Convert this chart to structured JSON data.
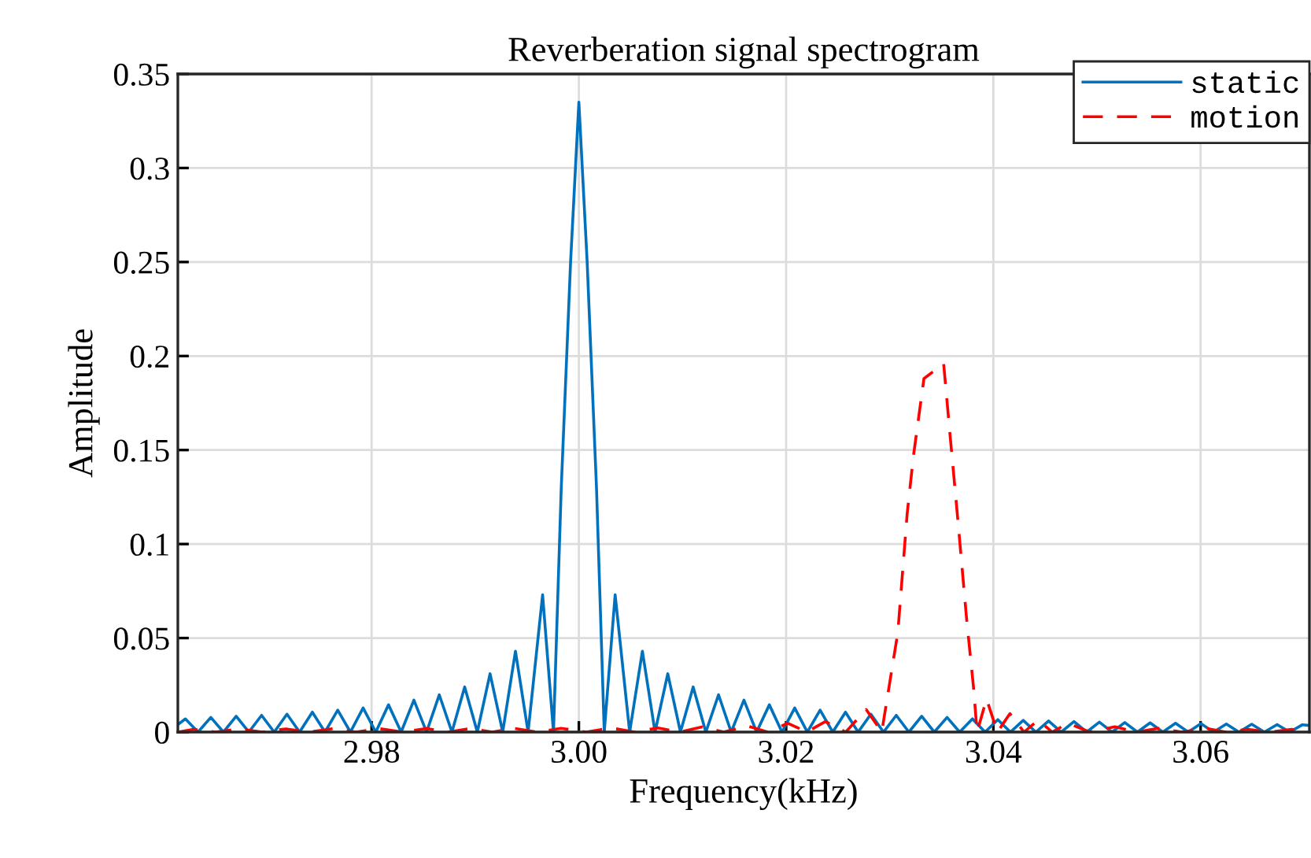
{
  "chart_data": {
    "type": "line",
    "title": "Reverberation signal spectrogram",
    "xlabel": "Frequency(kHz)",
    "ylabel": "Amplitude",
    "xlim": [
      2.9613,
      3.0705
    ],
    "ylim": [
      0,
      0.35
    ],
    "xticks": [
      2.98,
      {
        "value": 3.0,
        "label": "3.00"
      },
      3.02,
      3.04,
      3.06
    ],
    "yticks": [
      0,
      0.05,
      0.1,
      0.15,
      0.2,
      0.25,
      0.3,
      0.35
    ],
    "grid": true,
    "legend": "top right",
    "marker": "none",
    "series": [
      {
        "name": "static",
        "color": "#0072bd",
        "line_style": "solid",
        "x": [
          2.9613,
          2.96203,
          2.96325,
          2.96448,
          2.9657,
          2.96693,
          2.96815,
          2.96938,
          2.9706,
          2.97183,
          2.97305,
          2.97428,
          2.9755,
          2.97673,
          2.97795,
          2.97918,
          2.9804,
          2.98163,
          2.98285,
          2.98408,
          2.9853,
          2.98653,
          2.98775,
          2.98898,
          2.9902,
          2.99143,
          2.99265,
          2.99388,
          2.9951,
          2.9965,
          2.99755,
          2.9983,
          2.9992,
          3.0,
          3.0008,
          3.0017,
          3.00245,
          3.0035,
          3.0049,
          3.00613,
          3.00735,
          3.00858,
          3.0098,
          3.01103,
          3.01225,
          3.01348,
          3.0147,
          3.01593,
          3.01715,
          3.01838,
          3.0196,
          3.02083,
          3.02205,
          3.02328,
          3.0245,
          3.02573,
          3.02695,
          3.02818,
          3.0294,
          3.03063,
          3.03185,
          3.03308,
          3.0343,
          3.03553,
          3.03675,
          3.03798,
          3.0392,
          3.04043,
          3.04165,
          3.04288,
          3.0441,
          3.04533,
          3.04655,
          3.04778,
          3.049,
          3.05023,
          3.05145,
          3.05268,
          3.0539,
          3.05513,
          3.05635,
          3.05758,
          3.0588,
          3.06003,
          3.06125,
          3.06248,
          3.0637,
          3.06493,
          3.06615,
          3.06738,
          3.0686,
          3.06983,
          3.0705
        ],
        "values": [
          0.004,
          0.007,
          0,
          0.0078,
          0,
          0.0084,
          0,
          0.0089,
          0,
          0.0095,
          0,
          0.0106,
          0,
          0.0117,
          0,
          0.0128,
          0,
          0.0145,
          0,
          0.017,
          0,
          0.0198,
          0,
          0.024,
          0,
          0.031,
          0,
          0.043,
          0,
          0.073,
          0,
          0.13,
          0.25,
          0.335,
          0.25,
          0.13,
          0,
          0.073,
          0,
          0.043,
          0,
          0.031,
          0,
          0.024,
          0,
          0.0198,
          0,
          0.017,
          0,
          0.0145,
          0,
          0.0128,
          0,
          0.0117,
          0,
          0.0106,
          0,
          0.0095,
          0,
          0.0089,
          0,
          0.0084,
          0,
          0.0078,
          0,
          0.007,
          0,
          0.0066,
          0,
          0.0062,
          0,
          0.0059,
          0,
          0.0056,
          0,
          0.0053,
          0,
          0.0051,
          0,
          0.0049,
          0,
          0.0047,
          0,
          0.0045,
          0,
          0.0043,
          0,
          0.0042,
          0,
          0.004,
          0,
          0.0039,
          0.0035
        ]
      },
      {
        "name": "motion",
        "color": "#ff0000",
        "line_style": "dashed",
        "x": [
          2.9613,
          2.96281,
          2.96492,
          2.96719,
          2.96945,
          2.97172,
          2.97398,
          2.97624,
          2.97851,
          2.98077,
          2.98304,
          2.9853,
          2.98741,
          2.98953,
          2.99164,
          2.99375,
          2.99602,
          2.99828,
          3.0007,
          3.00311,
          3.00538,
          3.00764,
          3.00975,
          3.01187,
          3.01398,
          3.01624,
          3.01821,
          3.02017,
          3.02198,
          3.02379,
          3.02575,
          3.02772,
          3.02923,
          3.03078,
          3.03168,
          3.03229,
          3.0333,
          3.0352,
          3.03582,
          3.03657,
          3.03742,
          3.03808,
          3.03843,
          3.03934,
          3.04039,
          3.0416,
          3.04296,
          3.04432,
          3.04568,
          3.04719,
          3.0493,
          3.05172,
          3.05381,
          3.05592,
          3.0582,
          3.06047,
          3.06243,
          3.06455,
          3.06666,
          3.06877,
          3.06985
        ],
        "values": [
          0,
          0.0015,
          0,
          0.0017,
          0,
          0.0017,
          0,
          0.0018,
          0,
          0.0018,
          0,
          0.0019,
          0,
          0.0019,
          0,
          0.002,
          0,
          0.002,
          0,
          0.0022,
          0,
          0.0022,
          0,
          0.0027,
          0,
          0.0033,
          0,
          0.0047,
          0,
          0.0056,
          0,
          0.012,
          0,
          0.053,
          0.116,
          0.147,
          0.188,
          0.196,
          0.158,
          0.113,
          0.06,
          0.024,
          0,
          0.0176,
          0,
          0.0098,
          0,
          0.0064,
          0,
          0.0047,
          0,
          0.0028,
          0,
          0.002,
          0,
          0.002,
          0,
          0.0015,
          0,
          0.0015,
          0.0005
        ]
      }
    ]
  }
}
